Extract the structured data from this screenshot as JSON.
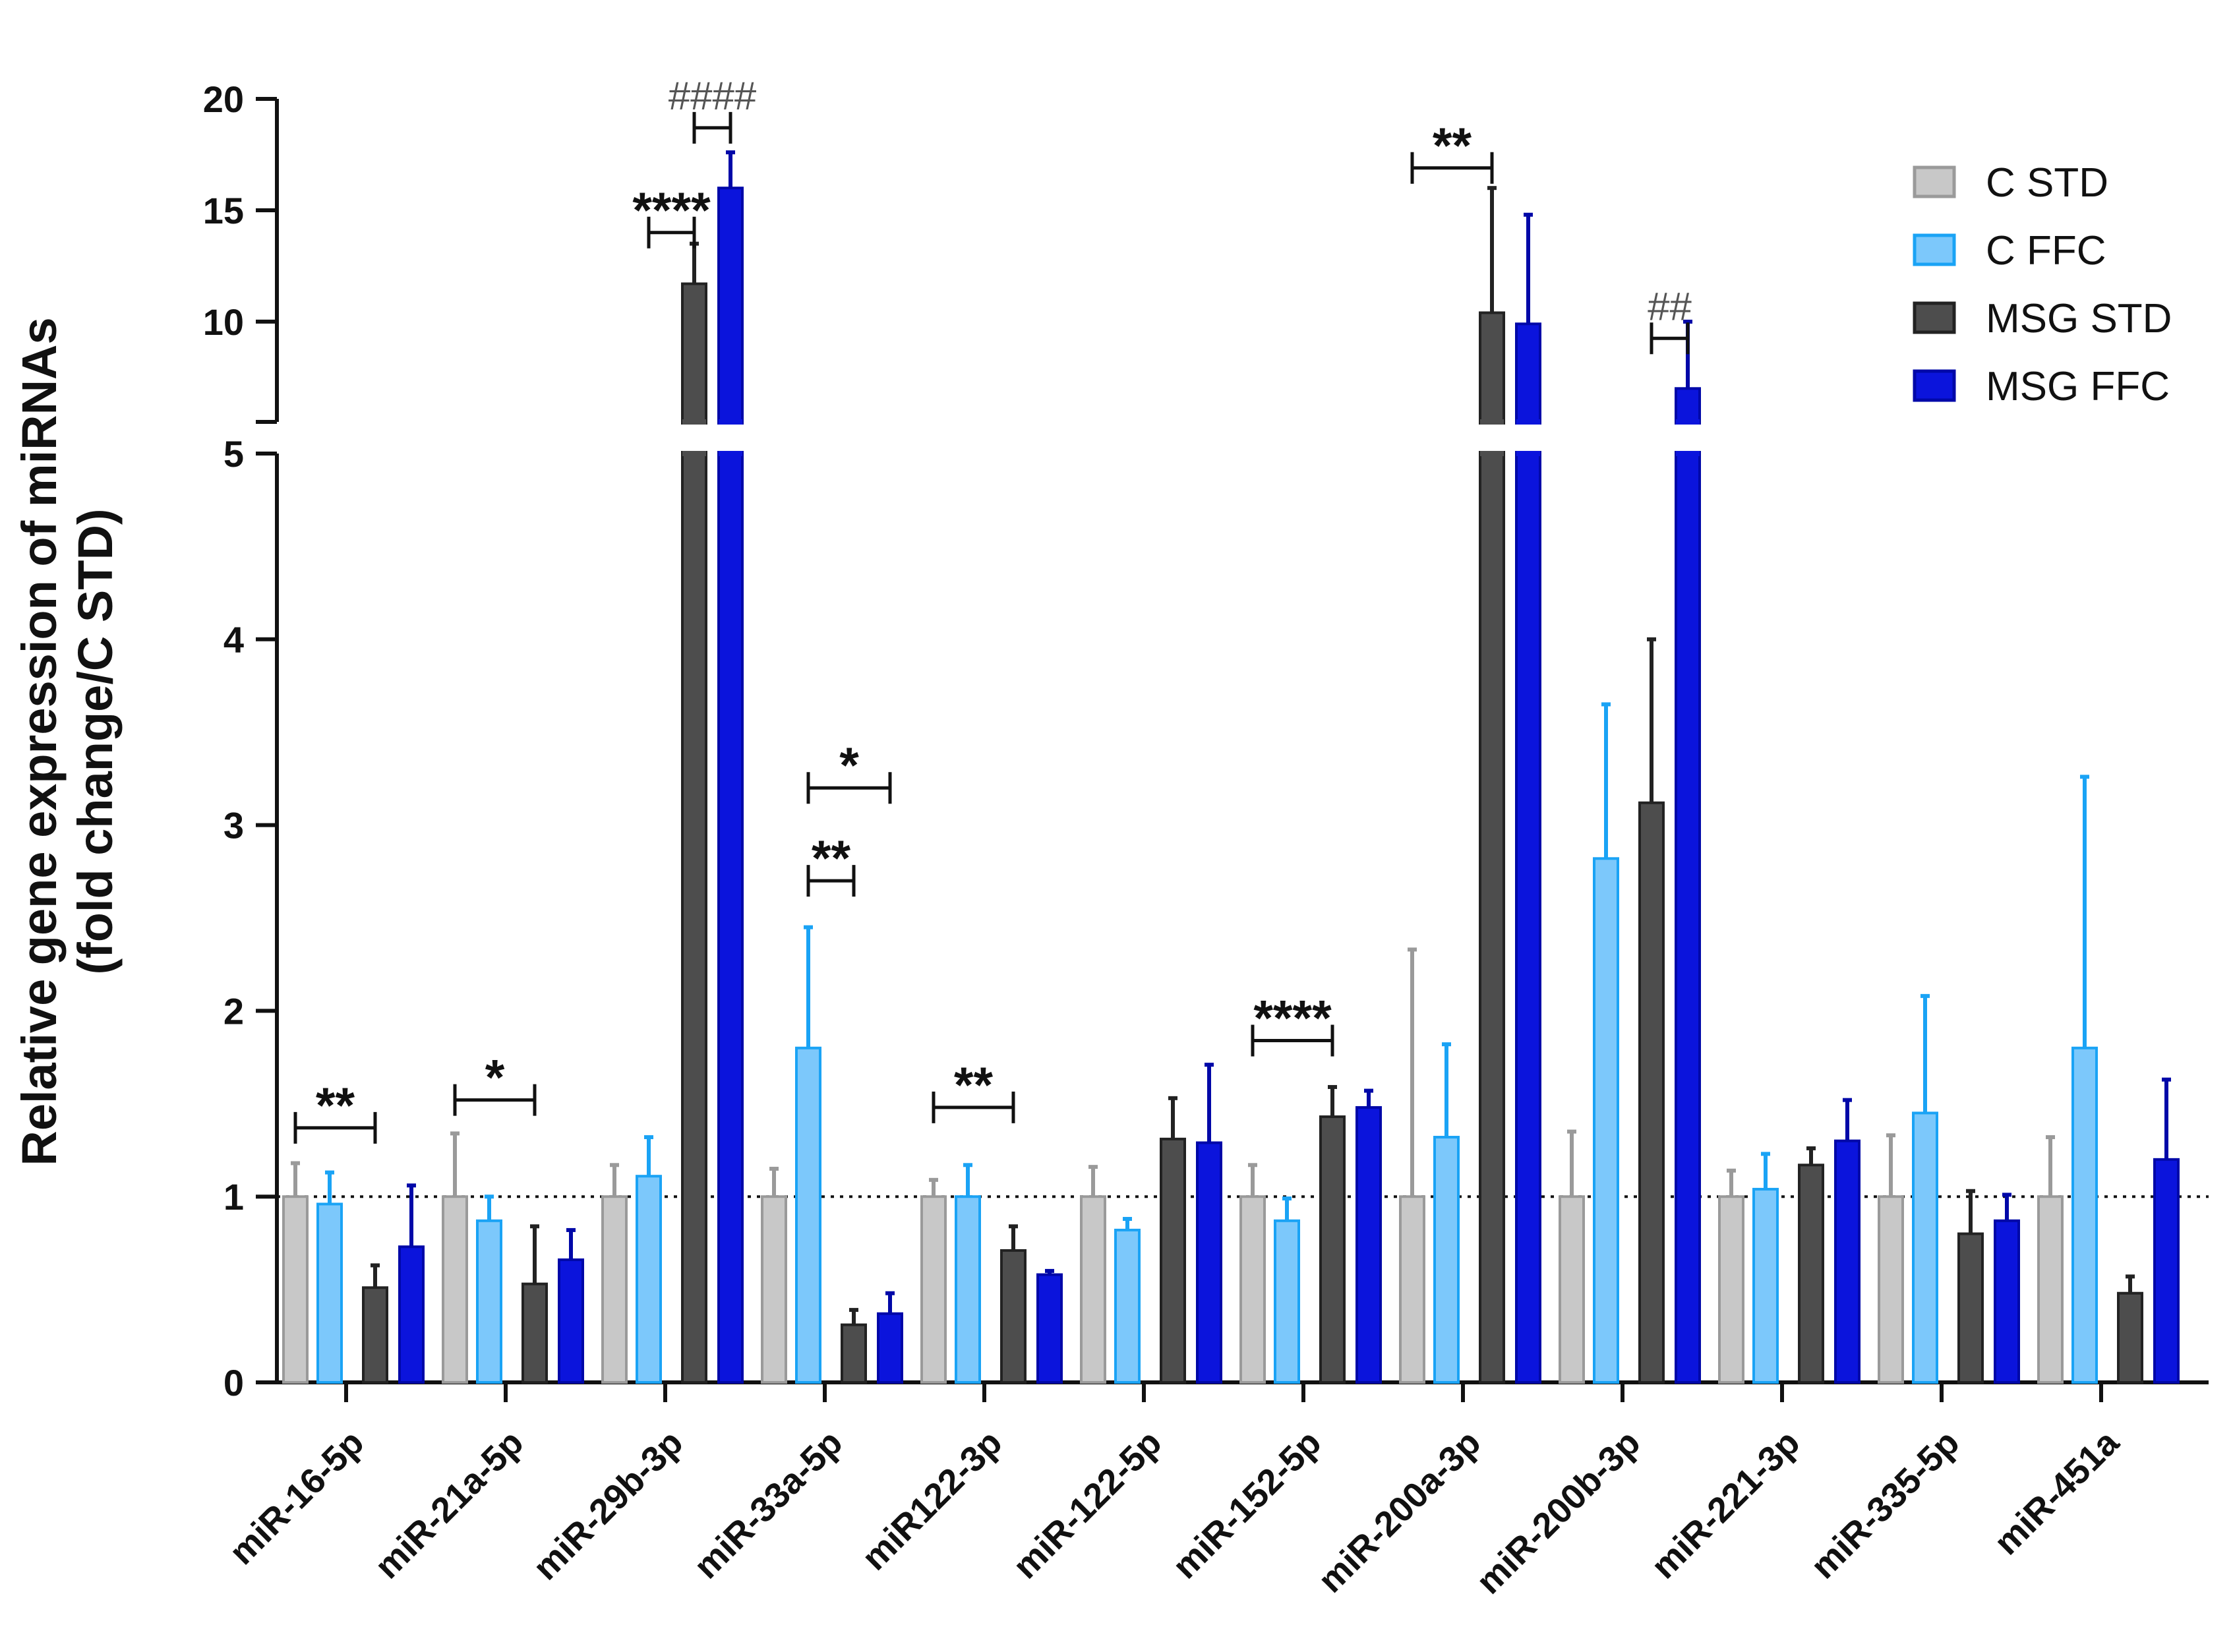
{
  "chart_data": {
    "type": "bar",
    "ylabel_line1": "Relative gene expression of miRNAs",
    "ylabel_line2": "(fold change/C STD)",
    "xlabel": "",
    "reference_line": 1,
    "y_axis_lower": {
      "range": [
        0,
        5
      ],
      "ticks": [
        "0",
        "1",
        "2",
        "3",
        "4",
        "5"
      ]
    },
    "y_axis_upper": {
      "range": [
        5.5,
        20
      ],
      "ticks": [
        "10",
        "15",
        "20"
      ]
    },
    "categories": [
      "miR-16-5p",
      "miR-21a-5p",
      "miR-29b-3p",
      "miR-33a-5p",
      "miR122-3p",
      "miR-122-5p",
      "miR-152-5p",
      "miR-200a-3p",
      "miR-200b-3p",
      "miR-221-3p",
      "miR-335-5p",
      "miR-451a"
    ],
    "series": [
      {
        "name": "C STD",
        "color": "#c8c8c8",
        "edge": "#9a9a9a",
        "values": [
          1.0,
          1.0,
          1.0,
          1.0,
          1.0,
          1.0,
          1.0,
          1.0,
          1.0,
          1.0,
          1.0,
          1.0
        ],
        "errors": [
          0.18,
          0.34,
          0.17,
          0.15,
          0.09,
          0.16,
          0.17,
          1.33,
          0.35,
          0.14,
          0.33,
          0.32
        ]
      },
      {
        "name": "C FFC",
        "color": "#7cc8fb",
        "edge": "#1aa3f5",
        "values": [
          0.96,
          0.87,
          1.11,
          1.8,
          1.0,
          0.82,
          0.87,
          1.32,
          2.82,
          1.04,
          1.45,
          1.8
        ],
        "errors": [
          0.17,
          0.13,
          0.21,
          0.65,
          0.17,
          0.06,
          0.12,
          0.5,
          0.83,
          0.19,
          0.63,
          1.46
        ]
      },
      {
        "name": "MSG STD",
        "color": "#4d4d4d",
        "edge": "#222222",
        "values": [
          0.51,
          0.53,
          11.7,
          0.31,
          0.71,
          1.31,
          1.43,
          10.4,
          3.12,
          1.17,
          0.8,
          0.48
        ],
        "errors": [
          0.12,
          0.31,
          1.8,
          0.08,
          0.13,
          0.22,
          0.16,
          5.6,
          0.88,
          0.09,
          0.23,
          0.09
        ]
      },
      {
        "name": "MSG FFC",
        "color": "#0b14dc",
        "edge": "#0008a8",
        "values": [
          0.73,
          0.66,
          16.0,
          0.37,
          0.58,
          1.29,
          1.48,
          9.9,
          7.0,
          1.3,
          0.87,
          1.2
        ],
        "errors": [
          0.33,
          0.16,
          1.6,
          0.11,
          0.02,
          0.42,
          0.09,
          4.9,
          3.0,
          0.22,
          0.14,
          0.43
        ]
      }
    ],
    "legend": {
      "position": "top-right",
      "labels": [
        "C STD",
        "C FFC",
        "MSG STD",
        "MSG FFC"
      ]
    },
    "annotations": [
      {
        "text": "**",
        "category": 0,
        "from_series": 0,
        "to_series": 2,
        "level": 1.37
      },
      {
        "text": "*",
        "category": 1,
        "from_series": 0,
        "to_series": 2,
        "level": 1.52
      },
      {
        "text": "****",
        "category": 2,
        "from_series": 1,
        "to_series": 2,
        "level": 14.0
      },
      {
        "text": "####",
        "category": 2,
        "from_series": 2,
        "to_series": 3,
        "level": 18.7
      },
      {
        "text": "**",
        "category": 3,
        "from_series": 1,
        "to_series": 2,
        "level": 2.7
      },
      {
        "text": "*",
        "category": 3,
        "from_series": 1,
        "to_series": 3,
        "level": 3.2
      },
      {
        "text": "**",
        "category": 4,
        "from_series": 0,
        "to_series": 2,
        "level": 1.48
      },
      {
        "text": "****",
        "category": 6,
        "from_series": 0,
        "to_series": 2,
        "level": 1.84
      },
      {
        "text": "**",
        "category": 7,
        "from_series": 0,
        "to_series": 2,
        "level": 16.9
      },
      {
        "text": "##",
        "category": 8,
        "from_series": 2,
        "to_series": 3,
        "level": 9.25
      }
    ]
  }
}
